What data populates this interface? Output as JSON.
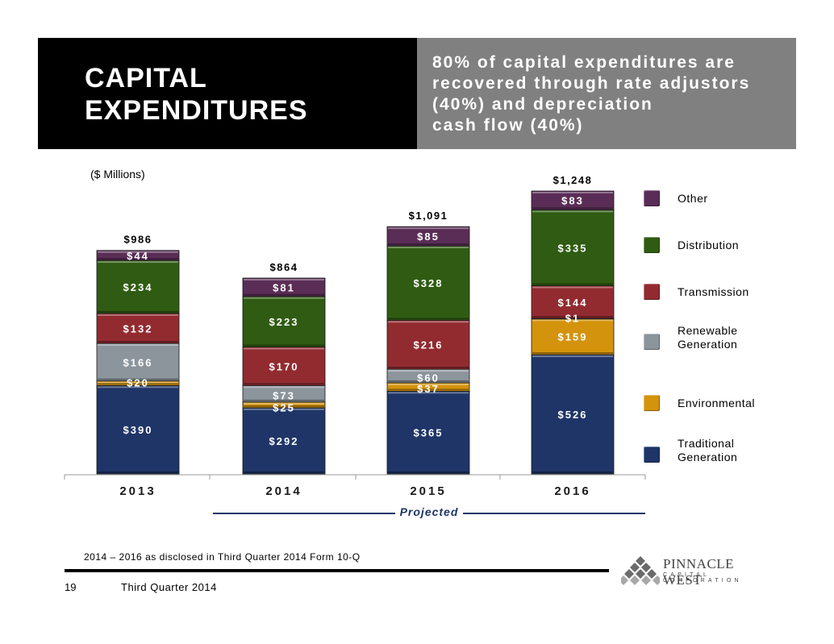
{
  "header": {
    "title_line1": "CAPITAL",
    "title_line2": "EXPENDITURES",
    "subtitle_line1": "80% of capital expenditures are",
    "subtitle_line2": "recovered through rate adjustors",
    "subtitle_line3": "(40%) and depreciation",
    "subtitle_line4": "cash flow (40%)"
  },
  "chart_data": {
    "type": "bar",
    "stacked": true,
    "units_label": "($ Millions)",
    "categories": [
      "2013",
      "2014",
      "2015",
      "2016"
    ],
    "totals": [
      "$986",
      "$864",
      "$1,091",
      "$1,248"
    ],
    "series": [
      {
        "name": "Traditional Generation",
        "legend_line1": "Traditional",
        "legend_line2": "Generation",
        "color": "#1f3568",
        "values": [
          390,
          292,
          365,
          526
        ],
        "labels": [
          "$390",
          "$292",
          "$365",
          "$526"
        ]
      },
      {
        "name": "Environmental",
        "legend_line1": "Environmental",
        "legend_line2": "",
        "color": "#d4930c",
        "values": [
          20,
          25,
          37,
          159
        ],
        "labels": [
          "$20",
          "$25",
          "$37",
          "$159"
        ]
      },
      {
        "name": "Renewable Generation",
        "legend_line1": "Renewable",
        "legend_line2": "Generation",
        "color": "#8c959c",
        "values": [
          166,
          73,
          60,
          1
        ],
        "labels": [
          "$166",
          "$73",
          "$60",
          "$1"
        ]
      },
      {
        "name": "Transmission",
        "legend_line1": "Transmission",
        "legend_line2": "",
        "color": "#922b30",
        "values": [
          132,
          170,
          216,
          144
        ],
        "labels": [
          "$132",
          "$170",
          "$216",
          "$144"
        ]
      },
      {
        "name": "Distribution",
        "legend_line1": "Distribution",
        "legend_line2": "",
        "color": "#2f5c12",
        "values": [
          234,
          223,
          328,
          335
        ],
        "labels": [
          "$234",
          "$223",
          "$328",
          "$335"
        ]
      },
      {
        "name": "Other",
        "legend_line1": "Other",
        "legend_line2": "",
        "color": "#5a2d57",
        "values": [
          44,
          81,
          85,
          83
        ],
        "labels": [
          "$44",
          "$81",
          "$85",
          "$83"
        ]
      }
    ],
    "ylim": [
      0,
      1248
    ],
    "projected_label": "Projected",
    "projected_categories": [
      "2014",
      "2015",
      "2016"
    ]
  },
  "footnote": "2014 – 2016 as disclosed in Third Quarter 2014 Form 10-Q",
  "footer": {
    "page_number": "19",
    "text": "Third Quarter 2014"
  },
  "logo": {
    "name": "PINNACLE WEST",
    "sub": "CAPITAL CORPORATION"
  }
}
